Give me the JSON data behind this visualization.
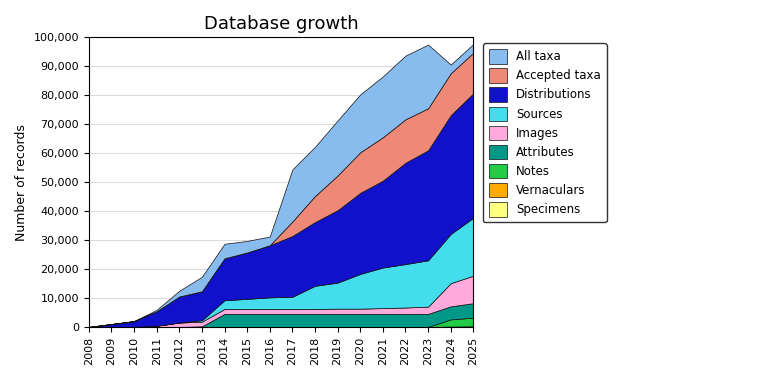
{
  "title": "Database growth",
  "ylabel": "Number of records",
  "ylim": [
    0,
    100000
  ],
  "yticks": [
    0,
    10000,
    20000,
    30000,
    40000,
    50000,
    60000,
    70000,
    80000,
    90000,
    100000
  ],
  "legend_labels": [
    "Specimens",
    "Vernaculars",
    "Notes",
    "Attributes",
    "Images",
    "Sources",
    "Distributions",
    "Accepted taxa",
    "All taxa"
  ],
  "legend_colors": [
    "#ffff80",
    "#ffaa00",
    "#22cc44",
    "#009988",
    "#ffaadd",
    "#44ddee",
    "#1111cc",
    "#ee8877",
    "#88bbee"
  ],
  "years": [
    2008,
    2009,
    2010,
    2011,
    2012,
    2013,
    2014,
    2015,
    2016,
    2017,
    2018,
    2019,
    2020,
    2021,
    2022,
    2023,
    2024,
    2025
  ],
  "series": {
    "Specimens": [
      0,
      0,
      0,
      0,
      0,
      0,
      0,
      0,
      0,
      0,
      0,
      0,
      0,
      0,
      0,
      0,
      100,
      200
    ],
    "Vernaculars": [
      0,
      0,
      0,
      0,
      0,
      0,
      0,
      0,
      0,
      0,
      0,
      0,
      0,
      0,
      0,
      0,
      0,
      0
    ],
    "Notes": [
      0,
      0,
      0,
      0,
      0,
      0,
      0,
      0,
      0,
      0,
      0,
      0,
      0,
      0,
      0,
      0,
      2500,
      3000
    ],
    "Attributes": [
      0,
      0,
      0,
      0,
      0,
      200,
      4500,
      4500,
      4500,
      4500,
      4500,
      4500,
      4500,
      4500,
      4500,
      4500,
      4500,
      5000
    ],
    "Images": [
      0,
      0,
      0,
      400,
      1500,
      1600,
      1700,
      1700,
      1700,
      1700,
      1700,
      1800,
      1800,
      2000,
      2200,
      2500,
      8000,
      9500
    ],
    "Sources": [
      0,
      0,
      0,
      0,
      0,
      500,
      3000,
      3500,
      4000,
      4200,
      8000,
      9000,
      12000,
      14000,
      15000,
      16000,
      17000,
      20000
    ],
    "Distributions": [
      0,
      1000,
      2000,
      5000,
      9000,
      10000,
      14500,
      16000,
      18000,
      21000,
      22000,
      25000,
      28000,
      30000,
      35000,
      38000,
      41000,
      43000
    ],
    "Accepted taxa": [
      0,
      0,
      0,
      0,
      0,
      0,
      0,
      0,
      0,
      5000,
      9000,
      12000,
      14000,
      15000,
      15000,
      14500,
      14500,
      14000
    ],
    "All taxa": [
      0,
      0,
      0,
      500,
      2000,
      5000,
      5000,
      4000,
      3000,
      18000,
      17000,
      19000,
      20000,
      21000,
      22000,
      22000,
      3000,
      3000
    ]
  },
  "background_color": "#ffffff",
  "grid_color": "#cccccc"
}
